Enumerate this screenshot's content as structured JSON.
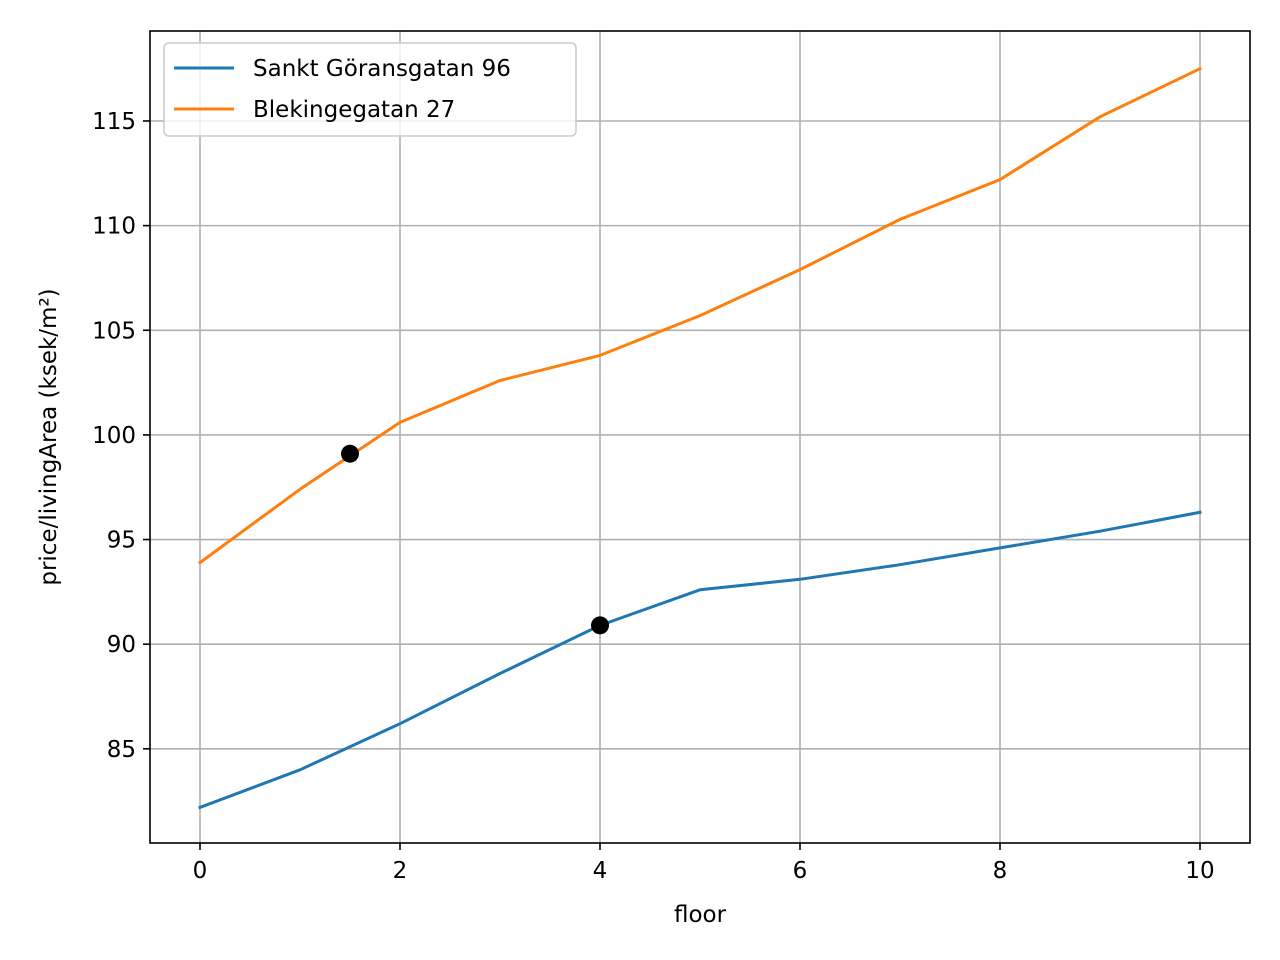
{
  "chart_data": {
    "type": "line",
    "title": "",
    "xlabel": "floor",
    "ylabel": "price/livingArea (ksek/m²)",
    "xlim": [
      -0.5,
      10.5
    ],
    "ylim": [
      80.5,
      119.3
    ],
    "grid": true,
    "legend_position": "top-left",
    "x_ticks": [
      0,
      2,
      4,
      6,
      8,
      10
    ],
    "x_tick_labels": [
      "0",
      "2",
      "4",
      "6",
      "8",
      "10"
    ],
    "y_ticks": [
      85,
      90,
      95,
      100,
      105,
      110,
      115
    ],
    "y_tick_labels": [
      "85",
      "90",
      "95",
      "100",
      "105",
      "110",
      "115"
    ],
    "x": [
      0,
      1,
      2,
      3,
      4,
      5,
      6,
      7,
      8,
      9,
      10
    ],
    "series": [
      {
        "name": "Sankt Göransgatan 96",
        "color": "#1f77b4",
        "values": [
          82.2,
          84.0,
          86.2,
          88.6,
          90.9,
          92.6,
          93.1,
          93.8,
          94.6,
          95.4,
          96.3
        ]
      },
      {
        "name": "Blekingegatan 27",
        "color": "#ff7f0e",
        "values": [
          93.9,
          97.4,
          100.6,
          102.6,
          103.8,
          105.7,
          107.9,
          110.3,
          112.2,
          115.2,
          117.5
        ]
      }
    ],
    "markers": [
      {
        "x": 1.5,
        "y": 99.1,
        "color": "#000000"
      },
      {
        "x": 4.0,
        "y": 90.9,
        "color": "#000000"
      }
    ]
  }
}
